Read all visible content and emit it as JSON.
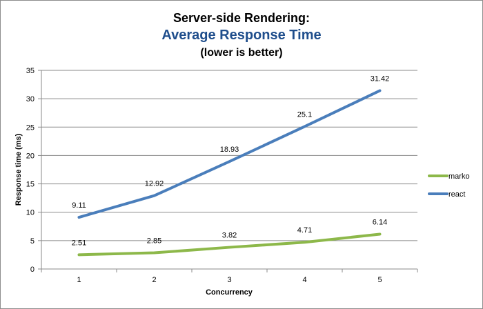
{
  "chart_data": {
    "type": "line",
    "title": "Server-side Rendering:",
    "subtitle": "Average Response Time",
    "note": "(lower is better)",
    "xlabel": "Concurrency",
    "ylabel": "Response time (ms)",
    "categories": [
      "1",
      "2",
      "3",
      "4",
      "5"
    ],
    "ylim": [
      0,
      35
    ],
    "yticks": [
      "0",
      "5",
      "10",
      "15",
      "20",
      "25",
      "30",
      "35"
    ],
    "grid": true,
    "legend_position": "right",
    "series": [
      {
        "name": "marko",
        "color": "#8db84a",
        "values": [
          2.51,
          2.85,
          3.82,
          4.71,
          6.14
        ],
        "labels": [
          "2.51",
          "2.85",
          "3.82",
          "4.71",
          "6.14"
        ]
      },
      {
        "name": "react",
        "color": "#4a7ebb",
        "values": [
          9.11,
          12.92,
          18.93,
          25.1,
          31.42
        ],
        "labels": [
          "9.11",
          "12.92",
          "18.93",
          "25.1",
          "31.42"
        ]
      }
    ],
    "title_colors": {
      "title": "#000000",
      "subtitle": "#1f4e8c",
      "note": "#000000"
    }
  }
}
